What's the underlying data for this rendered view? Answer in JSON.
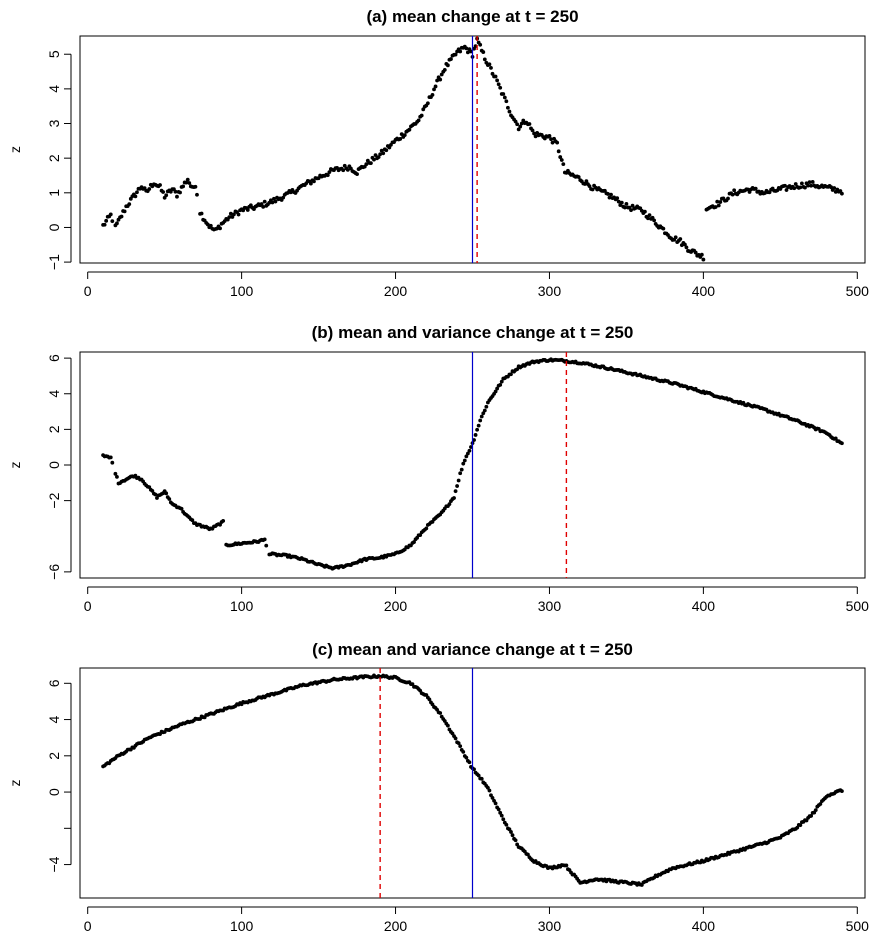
{
  "colors": {
    "points": "#000000",
    "true_change": "#0000cc",
    "estimate": "#e00000"
  },
  "chart_data": [
    {
      "type": "scatter",
      "title": "(a) mean change at t = 250",
      "ylabel": "z",
      "xlim": [
        10,
        490
      ],
      "ylim": [
        -0.9,
        5.4
      ],
      "xticks": [
        0,
        100,
        200,
        300,
        400,
        500
      ],
      "yticks": [
        -1,
        0,
        1,
        2,
        3,
        4,
        5
      ],
      "grid": false,
      "true_change_x": 250,
      "estimated_change_x": 253,
      "anchors": [
        [
          10,
          0.05
        ],
        [
          15,
          0.35
        ],
        [
          18,
          0.0
        ],
        [
          25,
          0.6
        ],
        [
          30,
          0.9
        ],
        [
          35,
          1.2
        ],
        [
          38,
          1.0
        ],
        [
          43,
          1.3
        ],
        [
          47,
          1.15
        ],
        [
          50,
          0.9
        ],
        [
          55,
          1.1
        ],
        [
          58,
          0.95
        ],
        [
          62,
          1.2
        ],
        [
          65,
          1.4
        ],
        [
          68,
          1.1
        ],
        [
          70,
          1.25
        ],
        [
          73,
          0.45
        ],
        [
          75,
          0.3
        ],
        [
          78,
          0.1
        ],
        [
          80,
          0.0
        ],
        [
          83,
          -0.1
        ],
        [
          87,
          0.1
        ],
        [
          92,
          0.3
        ],
        [
          100,
          0.5
        ],
        [
          110,
          0.6
        ],
        [
          120,
          0.75
        ],
        [
          130,
          0.95
        ],
        [
          140,
          1.2
        ],
        [
          150,
          1.45
        ],
        [
          160,
          1.65
        ],
        [
          170,
          1.75
        ],
        [
          175,
          1.6
        ],
        [
          180,
          1.8
        ],
        [
          190,
          2.1
        ],
        [
          200,
          2.5
        ],
        [
          208,
          2.8
        ],
        [
          215,
          3.1
        ],
        [
          220,
          3.5
        ],
        [
          225,
          4.0
        ],
        [
          232,
          4.6
        ],
        [
          240,
          5.05
        ],
        [
          245,
          5.2
        ],
        [
          250,
          5.0
        ],
        [
          253,
          5.4
        ],
        [
          258,
          4.9
        ],
        [
          265,
          4.3
        ],
        [
          270,
          3.8
        ],
        [
          275,
          3.3
        ],
        [
          280,
          2.9
        ],
        [
          285,
          3.1
        ],
        [
          290,
          2.7
        ],
        [
          300,
          2.6
        ],
        [
          305,
          2.4
        ],
        [
          310,
          1.6
        ],
        [
          320,
          1.4
        ],
        [
          330,
          1.1
        ],
        [
          340,
          0.9
        ],
        [
          350,
          0.6
        ],
        [
          360,
          0.5
        ],
        [
          370,
          0.1
        ],
        [
          380,
          -0.3
        ],
        [
          385,
          -0.4
        ],
        [
          390,
          -0.6
        ],
        [
          395,
          -0.75
        ],
        [
          400,
          -0.85
        ],
        [
          402,
          0.55
        ],
        [
          410,
          0.7
        ],
        [
          420,
          1.0
        ],
        [
          430,
          1.1
        ],
        [
          440,
          1.0
        ],
        [
          450,
          1.1
        ],
        [
          460,
          1.2
        ],
        [
          470,
          1.25
        ],
        [
          480,
          1.15
        ],
        [
          490,
          1.05
        ]
      ],
      "breaks": [
        17,
        72,
        401
      ],
      "noise": 0.08
    },
    {
      "type": "scatter",
      "title": "(b) mean and variance change at t = 250",
      "ylabel": "z",
      "xlim": [
        10,
        490
      ],
      "ylim": [
        -6.1,
        6.1
      ],
      "xticks": [
        0,
        100,
        200,
        300,
        400,
        500
      ],
      "yticks": [
        -6,
        -2,
        0,
        2,
        4,
        6
      ],
      "grid": false,
      "true_change_x": 250,
      "estimated_change_x": 311,
      "anchors": [
        [
          10,
          0.5
        ],
        [
          15,
          0.4
        ],
        [
          20,
          -1.0
        ],
        [
          25,
          -0.8
        ],
        [
          30,
          -0.6
        ],
        [
          35,
          -0.8
        ],
        [
          40,
          -1.3
        ],
        [
          45,
          -1.8
        ],
        [
          50,
          -1.5
        ],
        [
          55,
          -2.2
        ],
        [
          60,
          -2.4
        ],
        [
          65,
          -2.9
        ],
        [
          70,
          -3.3
        ],
        [
          80,
          -3.6
        ],
        [
          88,
          -3.2
        ],
        [
          90,
          -4.5
        ],
        [
          100,
          -4.4
        ],
        [
          110,
          -4.3
        ],
        [
          115,
          -4.2
        ],
        [
          118,
          -5.0
        ],
        [
          130,
          -5.1
        ],
        [
          140,
          -5.3
        ],
        [
          150,
          -5.6
        ],
        [
          160,
          -5.8
        ],
        [
          170,
          -5.6
        ],
        [
          180,
          -5.3
        ],
        [
          190,
          -5.2
        ],
        [
          200,
          -5.0
        ],
        [
          210,
          -4.5
        ],
        [
          220,
          -3.5
        ],
        [
          230,
          -2.7
        ],
        [
          238,
          -1.8
        ],
        [
          242,
          -0.5
        ],
        [
          245,
          0.3
        ],
        [
          250,
          1.2
        ],
        [
          255,
          2.5
        ],
        [
          260,
          3.5
        ],
        [
          270,
          4.8
        ],
        [
          280,
          5.5
        ],
        [
          290,
          5.8
        ],
        [
          300,
          5.9
        ],
        [
          310,
          5.85
        ],
        [
          320,
          5.75
        ],
        [
          340,
          5.4
        ],
        [
          360,
          5.0
        ],
        [
          380,
          4.6
        ],
        [
          400,
          4.1
        ],
        [
          420,
          3.6
        ],
        [
          440,
          3.1
        ],
        [
          460,
          2.5
        ],
        [
          480,
          1.8
        ],
        [
          490,
          1.2
        ]
      ],
      "breaks": [
        17,
        89,
        117
      ],
      "noise": 0.06
    },
    {
      "type": "scatter",
      "title": "(c) mean and variance change at t = 250",
      "ylabel": "z",
      "xlim": [
        10,
        490
      ],
      "ylim": [
        -5.6,
        6.6
      ],
      "xticks": [
        0,
        100,
        200,
        300,
        400,
        500
      ],
      "yticks": [
        -4,
        -2,
        0,
        2,
        4,
        6
      ],
      "ytick_labels": [
        "−4",
        "",
        "0",
        "2",
        "4",
        "6"
      ],
      "grid": false,
      "true_change_x": 250,
      "estimated_change_x": 190,
      "anchors": [
        [
          10,
          1.4
        ],
        [
          20,
          2.0
        ],
        [
          40,
          3.0
        ],
        [
          60,
          3.7
        ],
        [
          80,
          4.3
        ],
        [
          100,
          4.9
        ],
        [
          120,
          5.4
        ],
        [
          140,
          5.9
        ],
        [
          160,
          6.2
        ],
        [
          180,
          6.35
        ],
        [
          190,
          6.4
        ],
        [
          200,
          6.3
        ],
        [
          210,
          6.0
        ],
        [
          220,
          5.3
        ],
        [
          230,
          4.2
        ],
        [
          240,
          2.8
        ],
        [
          250,
          1.3
        ],
        [
          255,
          0.8
        ],
        [
          260,
          0.2
        ],
        [
          270,
          -1.5
        ],
        [
          280,
          -3.0
        ],
        [
          290,
          -3.8
        ],
        [
          300,
          -4.2
        ],
        [
          310,
          -4.0
        ],
        [
          315,
          -4.5
        ],
        [
          320,
          -5.0
        ],
        [
          330,
          -4.8
        ],
        [
          350,
          -5.0
        ],
        [
          360,
          -5.1
        ],
        [
          370,
          -4.6
        ],
        [
          380,
          -4.2
        ],
        [
          400,
          -3.8
        ],
        [
          420,
          -3.3
        ],
        [
          440,
          -2.8
        ],
        [
          450,
          -2.5
        ],
        [
          460,
          -2.0
        ],
        [
          470,
          -1.3
        ],
        [
          480,
          -0.2
        ],
        [
          490,
          0.1
        ]
      ],
      "breaks": [],
      "noise": 0.06
    }
  ]
}
